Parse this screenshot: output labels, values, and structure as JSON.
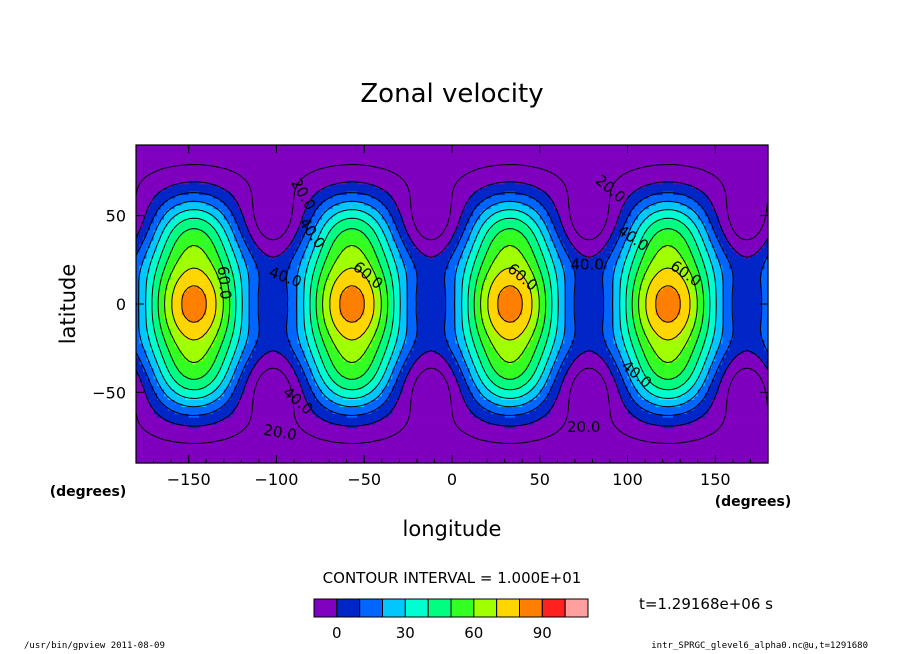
{
  "chart_data": {
    "type": "heatmap",
    "title": "Zonal velocity",
    "xlabel": "longitude",
    "ylabel": "latitude",
    "x_unit_label": "(degrees)",
    "y_unit_label": "(degrees)",
    "xlim": [
      -180,
      180
    ],
    "ylim": [
      -90,
      90
    ],
    "x_ticks": [
      -150,
      -100,
      -50,
      0,
      50,
      100,
      150
    ],
    "y_ticks": [
      50,
      0,
      -50
    ],
    "x_tick_labels": [
      "−150",
      "−100",
      "−50",
      "0",
      "50",
      "100",
      "150"
    ],
    "y_tick_labels": [
      "50",
      "0",
      "−50"
    ],
    "contour_interval_text": "CONTOUR INTERVAL = 1.000E+01",
    "contour_levels": [
      -10,
      0,
      10,
      20,
      30,
      40,
      50,
      60,
      70,
      80,
      90,
      100,
      110
    ],
    "colorbar_tick_values": [
      0,
      30,
      60,
      90
    ],
    "colorbar_tick_labels": [
      "0",
      "30",
      "60",
      "90"
    ],
    "colorbar_colors": [
      "#7f00bf",
      "#0026c8",
      "#0066ff",
      "#00c8ff",
      "#00ffd0",
      "#00ff80",
      "#33ff22",
      "#a0ff00",
      "#ffd600",
      "#ff7f00",
      "#ff2020",
      "#ff9fa0"
    ],
    "contour_labels": [
      {
        "text": "20.0",
        "lon": -85,
        "lat": 62,
        "rotation": 60
      },
      {
        "text": "40.0",
        "lon": -80,
        "lat": 40,
        "rotation": 55
      },
      {
        "text": "60.0",
        "lon": -130,
        "lat": 12,
        "rotation": 85
      },
      {
        "text": "40.0",
        "lon": -95,
        "lat": 15,
        "rotation": 20
      },
      {
        "text": "60.0",
        "lon": -48,
        "lat": 16,
        "rotation": 40
      },
      {
        "text": "60.0",
        "lon": 40,
        "lat": 15,
        "rotation": 40
      },
      {
        "text": "40.0",
        "lon": 77,
        "lat": 22,
        "rotation": 0
      },
      {
        "text": "20.0",
        "lon": 90,
        "lat": 65,
        "rotation": 40
      },
      {
        "text": "40.0",
        "lon": 103,
        "lat": 37,
        "rotation": 35
      },
      {
        "text": "60.0",
        "lon": 133,
        "lat": 17,
        "rotation": 35
      },
      {
        "text": "40.0",
        "lon": 105,
        "lat": -40,
        "rotation": 40
      },
      {
        "text": "40.0",
        "lon": -88,
        "lat": -55,
        "rotation": 40
      },
      {
        "text": "20.0",
        "lon": -98,
        "lat": -73,
        "rotation": 10
      },
      {
        "text": "20.0",
        "lon": 75,
        "lat": -70,
        "rotation": 0
      }
    ]
  },
  "time_label": "t=1.29168e+06 s",
  "footer_left": "/usr/bin/gpview   2011-08-09",
  "footer_right": "intr_SPRGC_glevel6_alpha0.nc@u,t=1291680"
}
